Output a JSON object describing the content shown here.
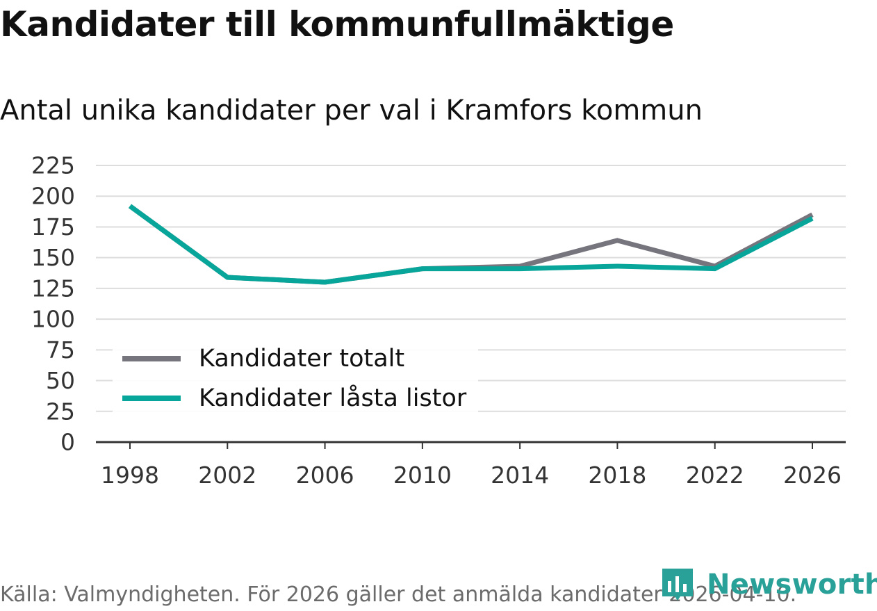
{
  "title": "Kandidater till kommunfullmäktige",
  "subtitle": "Antal unika kandidater per val i Kramfors kommun",
  "footer": "Källa: Valmyndigheten. För 2026 gäller det anmälda kandidater 2026-04-10.",
  "brand": "Newsworthy",
  "colors": {
    "totalt": "#76747d",
    "lasta": "#08a69a",
    "brand": "#2aa198",
    "grid": "#dddddd",
    "axis": "#333333"
  },
  "chart_data": {
    "type": "line",
    "x": [
      "1998",
      "2002",
      "2006",
      "2010",
      "2014",
      "2018",
      "2022",
      "2026"
    ],
    "series": [
      {
        "name": "Kandidater totalt",
        "values": [
          192,
          134,
          130,
          141,
          143,
          164,
          143,
          185
        ]
      },
      {
        "name": "Kandidater låsta listor",
        "values": [
          192,
          134,
          130,
          141,
          141,
          143,
          141,
          182
        ]
      }
    ],
    "yticks": [
      0,
      25,
      50,
      75,
      100,
      125,
      150,
      175,
      200,
      225
    ],
    "ylim": [
      0,
      225
    ],
    "xlabel": "",
    "ylabel": "",
    "grid": true,
    "legend_position": "bottom-left"
  }
}
